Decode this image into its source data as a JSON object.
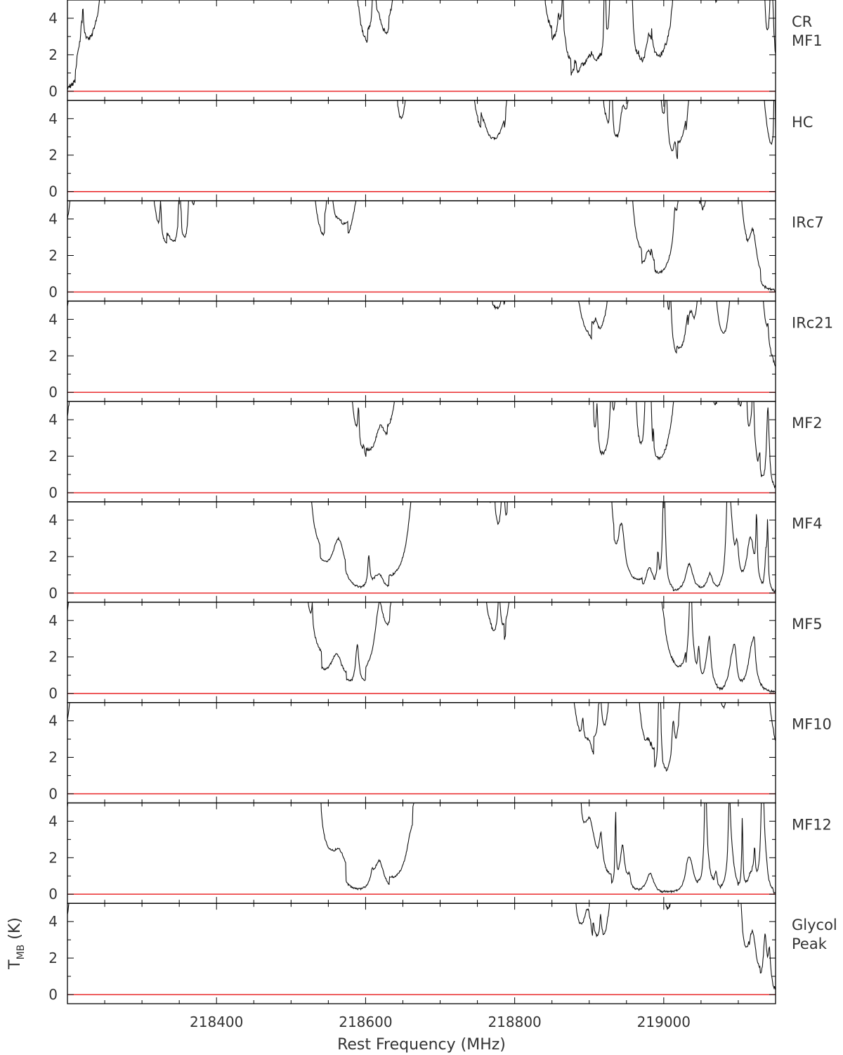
{
  "chart_data": {
    "type": "line",
    "xlabel": "Rest Frequency (MHz)",
    "ylabel_main": "T",
    "ylabel_sub": "MB",
    "ylabel_unit": " (K)",
    "xlim": [
      218200,
      219150
    ],
    "ylim": [
      -0.5,
      5.0
    ],
    "x_ticks": [
      218400,
      218600,
      218800,
      219000
    ],
    "y_ticks": [
      0,
      2,
      4
    ],
    "baseline": 0,
    "colors": {
      "spectrum": "#111111",
      "baseline": "#e8191b",
      "frame": "#000000"
    },
    "line_bands": [
      [
        218222,
        14
      ],
      [
        218263,
        10
      ],
      [
        218283,
        14
      ],
      [
        218300,
        10
      ],
      [
        218335,
        18
      ],
      [
        218393,
        12
      ],
      [
        218420,
        14
      ],
      [
        218440,
        10
      ],
      [
        218462,
        10
      ],
      [
        218478,
        12
      ],
      [
        218503,
        14
      ],
      [
        218563,
        16
      ],
      [
        218618,
        14
      ],
      [
        218662,
        12
      ],
      [
        218682,
        10
      ],
      [
        218725,
        12
      ],
      [
        218757,
        18
      ],
      [
        218815,
        12
      ],
      [
        218860,
        14
      ],
      [
        218900,
        14
      ],
      [
        218945,
        8
      ],
      [
        218980,
        10
      ],
      [
        219035,
        10
      ],
      [
        219060,
        8
      ],
      [
        219090,
        8
      ],
      [
        219118,
        10
      ]
    ],
    "series": [
      {
        "name": "CR MF1",
        "label_lines": [
          "CR",
          "MF1"
        ],
        "seed": 11,
        "offset": 0,
        "lines": 54,
        "strength": 1.3,
        "noise": 0.25,
        "clip_bands": [
          1,
          2,
          3,
          4,
          5,
          6,
          7,
          9,
          10,
          11,
          13,
          14,
          16,
          17,
          20,
          22,
          24,
          25
        ]
      },
      {
        "name": "HC",
        "label_lines": [
          "HC"
        ],
        "seed": 23,
        "offset": 1,
        "lines": 46,
        "strength": 1.6,
        "noise": 0.14,
        "clip_bands": [
          0,
          2,
          3,
          4,
          5,
          6,
          7,
          8,
          10,
          11,
          12,
          14,
          15,
          17,
          18,
          19,
          21,
          23,
          25
        ]
      },
      {
        "name": "IRc7",
        "label_lines": [
          "IRc7"
        ],
        "seed": 37,
        "offset": 2,
        "lines": 46,
        "strength": 1.5,
        "noise": 0.14,
        "clip_bands": [
          0,
          1,
          2,
          3,
          5,
          6,
          7,
          8,
          10,
          12,
          13,
          14,
          16,
          17,
          19,
          20,
          22,
          24
        ]
      },
      {
        "name": "IRc21",
        "label_lines": [
          "IRc21"
        ],
        "seed": 41,
        "offset": 3,
        "lines": 50,
        "strength": 1.5,
        "noise": 0.14,
        "clip_bands": [
          0,
          1,
          2,
          3,
          4,
          5,
          6,
          7,
          8,
          9,
          10,
          11,
          12,
          13,
          14,
          15,
          17,
          18,
          20,
          21,
          23,
          25
        ]
      },
      {
        "name": "MF2",
        "label_lines": [
          "MF2"
        ],
        "seed": 53,
        "offset": 4,
        "lines": 58,
        "strength": 1.6,
        "noise": 0.16,
        "clip_bands": [
          0,
          1,
          2,
          3,
          4,
          5,
          6,
          7,
          8,
          9,
          10,
          11,
          13,
          14,
          15,
          16,
          17,
          18,
          20,
          22,
          24
        ]
      },
      {
        "name": "MF4",
        "label_lines": [
          "MF4"
        ],
        "seed": 67,
        "offset": 5,
        "lines": 40,
        "strength": 1.1,
        "noise": 0.1,
        "clip_bands": [
          0,
          1,
          2,
          3,
          4,
          5,
          6,
          7,
          8,
          9,
          10,
          14,
          15,
          17,
          18,
          19
        ]
      },
      {
        "name": "MF5",
        "label_lines": [
          "MF5"
        ],
        "seed": 71,
        "offset": 6,
        "lines": 46,
        "strength": 1.3,
        "noise": 0.12,
        "clip_bands": [
          0,
          1,
          2,
          3,
          4,
          5,
          6,
          7,
          8,
          9,
          10,
          13,
          14,
          15,
          17,
          18,
          19,
          21
        ]
      },
      {
        "name": "MF10",
        "label_lines": [
          "MF10"
        ],
        "seed": 83,
        "offset": 7,
        "lines": 48,
        "strength": 1.5,
        "noise": 0.14,
        "clip_bands": [
          0,
          1,
          2,
          3,
          4,
          5,
          6,
          7,
          8,
          9,
          10,
          11,
          12,
          13,
          15,
          16,
          17,
          18,
          20,
          22,
          23,
          25
        ]
      },
      {
        "name": "MF12",
        "label_lines": [
          "MF12"
        ],
        "seed": 97,
        "offset": 8,
        "lines": 36,
        "strength": 1.0,
        "noise": 0.1,
        "clip_bands": [
          0,
          1,
          2,
          3,
          4,
          5,
          6,
          7,
          8,
          9,
          10,
          14,
          15,
          16,
          17,
          18
        ]
      },
      {
        "name": "Glycol Peak",
        "label_lines": [
          "Glycol",
          "Peak"
        ],
        "seed": 103,
        "offset": 9,
        "lines": 52,
        "strength": 1.6,
        "noise": 0.16,
        "clip_bands": [
          0,
          1,
          2,
          3,
          4,
          5,
          6,
          7,
          8,
          10,
          11,
          12,
          13,
          15,
          16,
          17,
          18,
          20,
          21,
          22,
          23,
          24
        ]
      }
    ]
  }
}
